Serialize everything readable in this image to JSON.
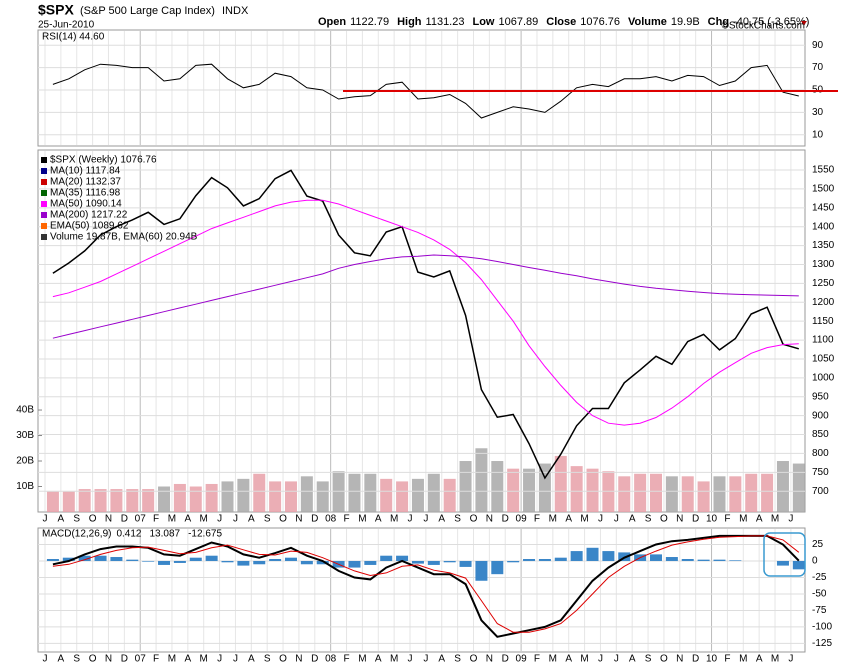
{
  "chart_data": {
    "type": "stock",
    "title": "$SPX",
    "subtitle": "(S&P 500 Large Cap Index)",
    "exchange": "INDX",
    "date": "25-Jun-2010",
    "credit": "©StockCharts.com",
    "quote": {
      "labels": [
        "Open",
        "High",
        "Low",
        "Close",
        "Volume",
        "Chg"
      ],
      "values": [
        "1122.79",
        "1131.23",
        "1067.89",
        "1076.76",
        "19.9B",
        "-40.75 (-3.65%)"
      ]
    },
    "categories": [
      "J",
      "A",
      "S",
      "O",
      "N",
      "D",
      "07",
      "F",
      "M",
      "A",
      "M",
      "J",
      "J",
      "A",
      "S",
      "O",
      "N",
      "D",
      "08",
      "F",
      "M",
      "A",
      "M",
      "J",
      "J",
      "A",
      "S",
      "O",
      "N",
      "D",
      "09",
      "F",
      "M",
      "A",
      "M",
      "J",
      "J",
      "A",
      "S",
      "O",
      "N",
      "D",
      "10",
      "F",
      "M",
      "A",
      "M",
      "J"
    ],
    "rsi": {
      "legend": "RSI(14) 44.60",
      "color": "#000000",
      "ylim": [
        0,
        100
      ],
      "yticks": [
        90,
        70,
        50,
        30,
        10
      ],
      "values": [
        55,
        60,
        68,
        73,
        72,
        70,
        70,
        58,
        60,
        72,
        73,
        60,
        52,
        55,
        65,
        62,
        52,
        50,
        42,
        44,
        45,
        55,
        57,
        42,
        43,
        46,
        38,
        25,
        30,
        35,
        33,
        30,
        40,
        52,
        55,
        53,
        60,
        60,
        62,
        58,
        63,
        62,
        54,
        58,
        70,
        72,
        48,
        44.6
      ]
    },
    "price": {
      "ylim": [
        645,
        1603
      ],
      "yticks": [
        700,
        750,
        800,
        850,
        900,
        950,
        1000,
        1050,
        1100,
        1150,
        1200,
        1250,
        1300,
        1350,
        1400,
        1450,
        1500,
        1550
      ],
      "legend": [
        {
          "text": "$SPX (Weekly) 1076.76",
          "color": "#000000"
        },
        {
          "text": "MA(10) 1117.84",
          "color": "#00008b"
        },
        {
          "text": "MA(20) 1132.37",
          "color": "#cc0000"
        },
        {
          "text": "MA(35) 1116.98",
          "color": "#006400"
        },
        {
          "text": "MA(50) 1090.14",
          "color": "#ff00ff"
        },
        {
          "text": "MA(200) 1217.22",
          "color": "#9900cc"
        },
        {
          "text": "EMA(50) 1089.62",
          "color": "#ff6600"
        },
        {
          "text": "Volume 19.87B, EMA(60) 20.94B",
          "color": "#333333"
        }
      ],
      "series": [
        {
          "name": "$SPX",
          "color": "#000000",
          "values": [
            1277,
            1304,
            1336,
            1378,
            1400,
            1418,
            1438,
            1406,
            1421,
            1482,
            1530,
            1503,
            1455,
            1474,
            1527,
            1549,
            1481,
            1468,
            1378,
            1331,
            1323,
            1386,
            1400,
            1280,
            1267,
            1283,
            1165,
            969,
            896,
            903,
            826,
            735,
            798,
            873,
            919,
            919,
            987,
            1021,
            1057,
            1036,
            1096,
            1115,
            1074,
            1104,
            1169,
            1187,
            1089,
            1077
          ]
        },
        {
          "name": "MA(50)",
          "color": "#ff00ff",
          "values": [
            1215,
            1225,
            1240,
            1255,
            1275,
            1295,
            1315,
            1335,
            1355,
            1375,
            1395,
            1410,
            1425,
            1440,
            1455,
            1465,
            1470,
            1470,
            1460,
            1445,
            1430,
            1415,
            1400,
            1385,
            1365,
            1340,
            1305,
            1260,
            1205,
            1150,
            1085,
            1030,
            980,
            935,
            900,
            880,
            875,
            880,
            895,
            920,
            950,
            985,
            1015,
            1040,
            1065,
            1080,
            1088,
            1090
          ]
        },
        {
          "name": "MA(200)",
          "color": "#9900cc",
          "values": [
            1105,
            1115,
            1125,
            1135,
            1145,
            1155,
            1165,
            1175,
            1185,
            1195,
            1205,
            1215,
            1225,
            1235,
            1245,
            1255,
            1265,
            1275,
            1290,
            1300,
            1308,
            1315,
            1320,
            1322,
            1325,
            1323,
            1320,
            1315,
            1308,
            1300,
            1292,
            1285,
            1277,
            1270,
            1262,
            1255,
            1248,
            1242,
            1237,
            1233,
            1229,
            1226,
            1223,
            1221,
            1220,
            1219,
            1218,
            1217
          ]
        }
      ]
    },
    "volume": {
      "ylim": [
        0,
        142
      ],
      "yticks": [
        {
          "value": 10,
          "label": "10B"
        },
        {
          "value": 20,
          "label": "20B"
        },
        {
          "value": 30,
          "label": "30B"
        },
        {
          "value": 40,
          "label": "40B"
        }
      ],
      "up_color": "#e8a0a8",
      "down_color": "#a8a8a8",
      "values": [
        8,
        8,
        9,
        9,
        9,
        9,
        9,
        10,
        11,
        10,
        11,
        12,
        13,
        15,
        12,
        12,
        14,
        12,
        16,
        15,
        15,
        13,
        12,
        13,
        15,
        13,
        20,
        25,
        20,
        17,
        17,
        19,
        22,
        18,
        17,
        16,
        14,
        15,
        15,
        14,
        14,
        12,
        14,
        14,
        15,
        15,
        20,
        19
      ]
    },
    "macd": {
      "legend": "MACD(12,26,9)",
      "ylim": [
        -138,
        50
      ],
      "yticks": [
        25,
        0,
        -25,
        -50,
        -75,
        -100,
        -125
      ],
      "series": [
        {
          "name": "MACD",
          "color": "#000000",
          "values": [
            -5,
            0,
            10,
            18,
            22,
            22,
            20,
            10,
            8,
            18,
            28,
            22,
            10,
            5,
            12,
            20,
            8,
            0,
            -15,
            -25,
            -28,
            -10,
            0,
            -10,
            -20,
            -20,
            -35,
            -90,
            -115,
            -110,
            -105,
            -100,
            -90,
            -60,
            -30,
            -10,
            5,
            15,
            25,
            30,
            32,
            35,
            38,
            38,
            38,
            38,
            25,
            0.412
          ]
        },
        {
          "name": "Signal",
          "color": "#dd0000",
          "values": [
            -8,
            -5,
            2,
            10,
            16,
            20,
            21,
            16,
            11,
            13,
            20,
            24,
            17,
            10,
            9,
            15,
            13,
            5,
            -5,
            -15,
            -22,
            -18,
            -8,
            -6,
            -14,
            -18,
            -26,
            -60,
            -95,
            -108,
            -108,
            -103,
            -95,
            -75,
            -50,
            -25,
            -8,
            5,
            15,
            24,
            29,
            33,
            36,
            37,
            38,
            38,
            32,
            13.087
          ]
        },
        {
          "name": "Histogram",
          "color": "#3a86c8",
          "values": [
            3,
            5,
            8,
            8,
            6,
            2,
            -1,
            -6,
            -3,
            5,
            8,
            -2,
            -7,
            -5,
            3,
            5,
            -5,
            -5,
            -10,
            -10,
            -6,
            8,
            8,
            -4,
            -6,
            -2,
            -9,
            -30,
            -20,
            -2,
            3,
            3,
            5,
            15,
            20,
            15,
            13,
            10,
            10,
            6,
            3,
            2,
            2,
            1,
            0,
            0,
            -7,
            -12.675
          ]
        }
      ]
    }
  }
}
